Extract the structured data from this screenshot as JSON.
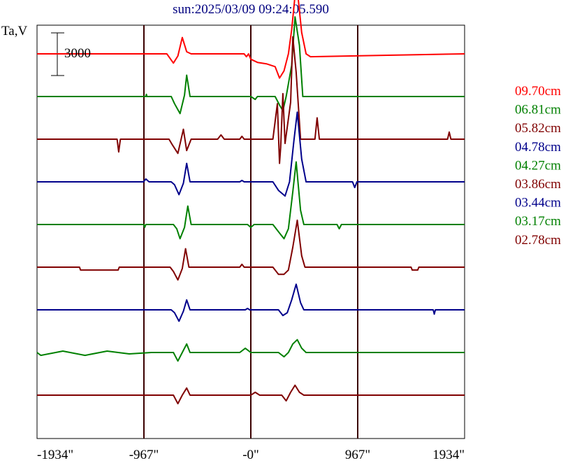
{
  "header": {
    "timestamp": "sun:2025/03/09 09:24:05.590"
  },
  "chart_data": {
    "type": "line",
    "title": "sun:2025/03/09 09:24:05.590",
    "ylabel": "Ta,V",
    "xlabel": "",
    "xlim": [
      -1934,
      1934
    ],
    "x_ticks": [
      {
        "value": -1934,
        "label": "-1934\""
      },
      {
        "value": -967,
        "label": "-967\""
      },
      {
        "value": 0,
        "label": "-0\""
      },
      {
        "value": 967,
        "label": "967\""
      },
      {
        "value": 1934,
        "label": "1934\""
      }
    ],
    "vertical_lines": [
      -967,
      0,
      967
    ],
    "grid": false,
    "scale_bar": {
      "value": 3000,
      "label": "3000"
    },
    "legend_placement": "right",
    "series": [
      {
        "name": "09.70cm",
        "color": "#ff0000",
        "baseline_slot": 0,
        "points": [
          [
            -1934,
            0
          ],
          [
            -1000,
            0
          ],
          [
            -990,
            -1
          ],
          [
            -980,
            0
          ],
          [
            -760,
            0
          ],
          [
            -700,
            -650
          ],
          [
            -660,
            -150
          ],
          [
            -620,
            1150
          ],
          [
            -580,
            150
          ],
          [
            -540,
            0
          ],
          [
            -60,
            0
          ],
          [
            -40,
            -200
          ],
          [
            -20,
            0
          ],
          [
            0,
            -380
          ],
          [
            60,
            -600
          ],
          [
            140,
            -700
          ],
          [
            220,
            -900
          ],
          [
            260,
            -1700
          ],
          [
            300,
            -1200
          ],
          [
            340,
            0
          ],
          [
            370,
            1700
          ],
          [
            400,
            4100
          ],
          [
            430,
            3800
          ],
          [
            460,
            1500
          ],
          [
            500,
            0
          ],
          [
            540,
            -200
          ],
          [
            1934,
            0
          ]
        ]
      },
      {
        "name": "06.81cm",
        "color": "#008000",
        "baseline_slot": 1,
        "points": [
          [
            -1934,
            0
          ],
          [
            -950,
            0
          ],
          [
            -945,
            150
          ],
          [
            -940,
            0
          ],
          [
            -720,
            0
          ],
          [
            -690,
            -500
          ],
          [
            -640,
            -1200
          ],
          [
            -600,
            100
          ],
          [
            -580,
            1500
          ],
          [
            -550,
            0
          ],
          [
            -510,
            0
          ],
          [
            0,
            0
          ],
          [
            40,
            -200
          ],
          [
            60,
            0
          ],
          [
            220,
            0
          ],
          [
            260,
            -600
          ],
          [
            290,
            -1000
          ],
          [
            320,
            0
          ],
          [
            370,
            2200
          ],
          [
            400,
            5600
          ],
          [
            440,
            3600
          ],
          [
            470,
            0
          ],
          [
            1934,
            0
          ]
        ]
      },
      {
        "name": "05.82cm",
        "color": "#800000",
        "baseline_slot": 2,
        "points": [
          [
            -1934,
            0
          ],
          [
            -1210,
            0
          ],
          [
            -1195,
            -900
          ],
          [
            -1180,
            0
          ],
          [
            -740,
            0
          ],
          [
            -710,
            -400
          ],
          [
            -660,
            -1000
          ],
          [
            -610,
            700
          ],
          [
            -580,
            -800
          ],
          [
            -540,
            0
          ],
          [
            -300,
            0
          ],
          [
            -270,
            300
          ],
          [
            -240,
            0
          ],
          [
            -100,
            0
          ],
          [
            -80,
            200
          ],
          [
            -60,
            0
          ],
          [
            200,
            0
          ],
          [
            240,
            2500
          ],
          [
            260,
            -1700
          ],
          [
            270,
            -600
          ],
          [
            290,
            3200
          ],
          [
            310,
            -300
          ],
          [
            360,
            2600
          ],
          [
            380,
            7200
          ],
          [
            410,
            4700
          ],
          [
            450,
            0
          ],
          [
            580,
            0
          ],
          [
            600,
            1500
          ],
          [
            620,
            0
          ],
          [
            1780,
            0
          ],
          [
            1795,
            500
          ],
          [
            1810,
            0
          ],
          [
            1934,
            0
          ]
        ]
      },
      {
        "name": "04.78cm",
        "color": "#00008b",
        "baseline_slot": 3,
        "points": [
          [
            -1934,
            0
          ],
          [
            -970,
            0
          ],
          [
            -950,
            200
          ],
          [
            -920,
            0
          ],
          [
            -720,
            0
          ],
          [
            -690,
            -200
          ],
          [
            -650,
            -900
          ],
          [
            -610,
            -100
          ],
          [
            -580,
            1300
          ],
          [
            -550,
            0
          ],
          [
            -100,
            0
          ],
          [
            -80,
            100
          ],
          [
            -60,
            0
          ],
          [
            200,
            0
          ],
          [
            250,
            -600
          ],
          [
            310,
            -1000
          ],
          [
            350,
            0
          ],
          [
            390,
            2900
          ],
          [
            420,
            4900
          ],
          [
            460,
            1600
          ],
          [
            500,
            0
          ],
          [
            920,
            0
          ],
          [
            940,
            -400
          ],
          [
            960,
            0
          ],
          [
            1934,
            0
          ]
        ]
      },
      {
        "name": "04.27cm",
        "color": "#008000",
        "baseline_slot": 4,
        "points": [
          [
            -1934,
            0
          ],
          [
            -970,
            0
          ],
          [
            -960,
            -200
          ],
          [
            -950,
            0
          ],
          [
            -700,
            0
          ],
          [
            -670,
            -300
          ],
          [
            -640,
            -1000
          ],
          [
            -600,
            -200
          ],
          [
            -570,
            1300
          ],
          [
            -540,
            0
          ],
          [
            -30,
            0
          ],
          [
            0,
            -200
          ],
          [
            30,
            0
          ],
          [
            200,
            0
          ],
          [
            260,
            -600
          ],
          [
            300,
            -1000
          ],
          [
            340,
            -300
          ],
          [
            380,
            2300
          ],
          [
            410,
            4400
          ],
          [
            450,
            1000
          ],
          [
            480,
            0
          ],
          [
            780,
            0
          ],
          [
            800,
            -300
          ],
          [
            820,
            0
          ],
          [
            1934,
            0
          ]
        ]
      },
      {
        "name": "03.86cm",
        "color": "#800000",
        "baseline_slot": 5,
        "points": [
          [
            -1934,
            0
          ],
          [
            -1550,
            0
          ],
          [
            -1540,
            -200
          ],
          [
            -1200,
            -200
          ],
          [
            -1190,
            0
          ],
          [
            -730,
            0
          ],
          [
            -700,
            -300
          ],
          [
            -660,
            -900
          ],
          [
            -620,
            -100
          ],
          [
            -590,
            1300
          ],
          [
            -560,
            0
          ],
          [
            -100,
            0
          ],
          [
            -80,
            200
          ],
          [
            -60,
            0
          ],
          [
            200,
            0
          ],
          [
            250,
            -500
          ],
          [
            300,
            -500
          ],
          [
            340,
            -200
          ],
          [
            380,
            1400
          ],
          [
            420,
            3300
          ],
          [
            460,
            800
          ],
          [
            490,
            0
          ],
          [
            1450,
            0
          ],
          [
            1460,
            -200
          ],
          [
            1510,
            -200
          ],
          [
            1520,
            0
          ],
          [
            1934,
            0
          ]
        ]
      },
      {
        "name": "03.44cm",
        "color": "#00008b",
        "baseline_slot": 6,
        "points": [
          [
            -1934,
            0
          ],
          [
            -720,
            0
          ],
          [
            -690,
            -200
          ],
          [
            -650,
            -800
          ],
          [
            -610,
            -100
          ],
          [
            -580,
            700
          ],
          [
            -550,
            0
          ],
          [
            -50,
            0
          ],
          [
            -30,
            100
          ],
          [
            -10,
            0
          ],
          [
            250,
            0
          ],
          [
            290,
            -400
          ],
          [
            330,
            -200
          ],
          [
            370,
            700
          ],
          [
            410,
            1800
          ],
          [
            450,
            500
          ],
          [
            480,
            0
          ],
          [
            1650,
            0
          ],
          [
            1660,
            -300
          ],
          [
            1670,
            0
          ],
          [
            1934,
            0
          ]
        ]
      },
      {
        "name": "03.17cm",
        "color": "#008000",
        "baseline_slot": 7,
        "points": [
          [
            -1934,
            0
          ],
          [
            -1900,
            -200
          ],
          [
            -1700,
            100
          ],
          [
            -1500,
            -200
          ],
          [
            -1300,
            100
          ],
          [
            -1100,
            -100
          ],
          [
            -900,
            0
          ],
          [
            -700,
            0
          ],
          [
            -660,
            -600
          ],
          [
            -620,
            0
          ],
          [
            -580,
            600
          ],
          [
            -550,
            0
          ],
          [
            -100,
            0
          ],
          [
            -50,
            300
          ],
          [
            0,
            0
          ],
          [
            250,
            0
          ],
          [
            300,
            -300
          ],
          [
            340,
            0
          ],
          [
            380,
            600
          ],
          [
            420,
            900
          ],
          [
            460,
            300
          ],
          [
            500,
            0
          ],
          [
            1934,
            0
          ]
        ]
      },
      {
        "name": "02.78cm",
        "color": "#800000",
        "baseline_slot": 8,
        "points": [
          [
            -1934,
            0
          ],
          [
            -700,
            0
          ],
          [
            -660,
            -600
          ],
          [
            -620,
            0
          ],
          [
            -580,
            500
          ],
          [
            -550,
            0
          ],
          [
            0,
            0
          ],
          [
            40,
            200
          ],
          [
            80,
            0
          ],
          [
            280,
            0
          ],
          [
            320,
            -400
          ],
          [
            360,
            200
          ],
          [
            400,
            700
          ],
          [
            440,
            200
          ],
          [
            480,
            0
          ],
          [
            1934,
            0
          ]
        ]
      }
    ]
  }
}
